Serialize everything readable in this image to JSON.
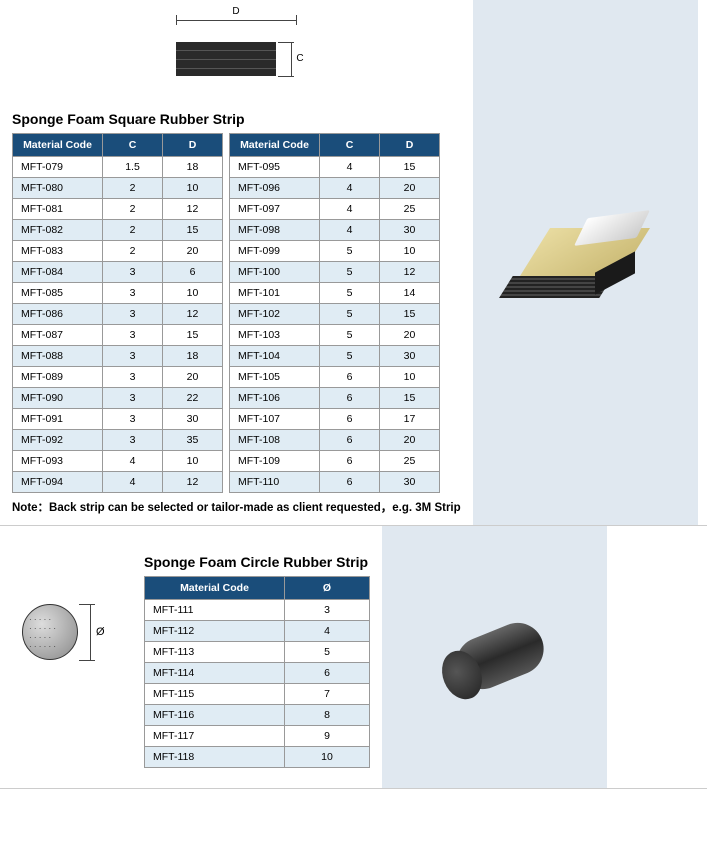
{
  "colors": {
    "header_bg": "#1a4d7a",
    "header_fg": "#ffffff",
    "row_alt_bg": "#e0ecf4",
    "border": "#999999",
    "panel_bg": "#e0e8f0"
  },
  "square": {
    "title": "Sponge Foam Square Rubber Strip",
    "note": "Note：Back strip can be selected or tailor-made as client requested，e.g. 3M Strip",
    "diagram": {
      "label_d": "D",
      "label_c": "C"
    },
    "table": {
      "columns": [
        "Material Code",
        "C",
        "D"
      ],
      "left_rows": [
        [
          "MFT-079",
          "1.5",
          "18"
        ],
        [
          "MFT-080",
          "2",
          "10"
        ],
        [
          "MFT-081",
          "2",
          "12"
        ],
        [
          "MFT-082",
          "2",
          "15"
        ],
        [
          "MFT-083",
          "2",
          "20"
        ],
        [
          "MFT-084",
          "3",
          "6"
        ],
        [
          "MFT-085",
          "3",
          "10"
        ],
        [
          "MFT-086",
          "3",
          "12"
        ],
        [
          "MFT-087",
          "3",
          "15"
        ],
        [
          "MFT-088",
          "3",
          "18"
        ],
        [
          "MFT-089",
          "3",
          "20"
        ],
        [
          "MFT-090",
          "3",
          "22"
        ],
        [
          "MFT-091",
          "3",
          "30"
        ],
        [
          "MFT-092",
          "3",
          "35"
        ],
        [
          "MFT-093",
          "4",
          "10"
        ],
        [
          "MFT-094",
          "4",
          "12"
        ]
      ],
      "right_rows": [
        [
          "MFT-095",
          "4",
          "15"
        ],
        [
          "MFT-096",
          "4",
          "20"
        ],
        [
          "MFT-097",
          "4",
          "25"
        ],
        [
          "MFT-098",
          "4",
          "30"
        ],
        [
          "MFT-099",
          "5",
          "10"
        ],
        [
          "MFT-100",
          "5",
          "12"
        ],
        [
          "MFT-101",
          "5",
          "14"
        ],
        [
          "MFT-102",
          "5",
          "15"
        ],
        [
          "MFT-103",
          "5",
          "20"
        ],
        [
          "MFT-104",
          "5",
          "30"
        ],
        [
          "MFT-105",
          "6",
          "10"
        ],
        [
          "MFT-106",
          "6",
          "15"
        ],
        [
          "MFT-107",
          "6",
          "17"
        ],
        [
          "MFT-108",
          "6",
          "20"
        ],
        [
          "MFT-109",
          "6",
          "25"
        ],
        [
          "MFT-110",
          "6",
          "30"
        ]
      ]
    }
  },
  "circle": {
    "title": "Sponge Foam Circle Rubber Strip",
    "diagram": {
      "label_diam": "Ø"
    },
    "table": {
      "columns": [
        "Material Code",
        "Ø"
      ],
      "rows": [
        [
          "MFT-111",
          "3"
        ],
        [
          "MFT-112",
          "4"
        ],
        [
          "MFT-113",
          "5"
        ],
        [
          "MFT-114",
          "6"
        ],
        [
          "MFT-115",
          "7"
        ],
        [
          "MFT-116",
          "8"
        ],
        [
          "MFT-117",
          "9"
        ],
        [
          "MFT-118",
          "10"
        ]
      ]
    }
  }
}
